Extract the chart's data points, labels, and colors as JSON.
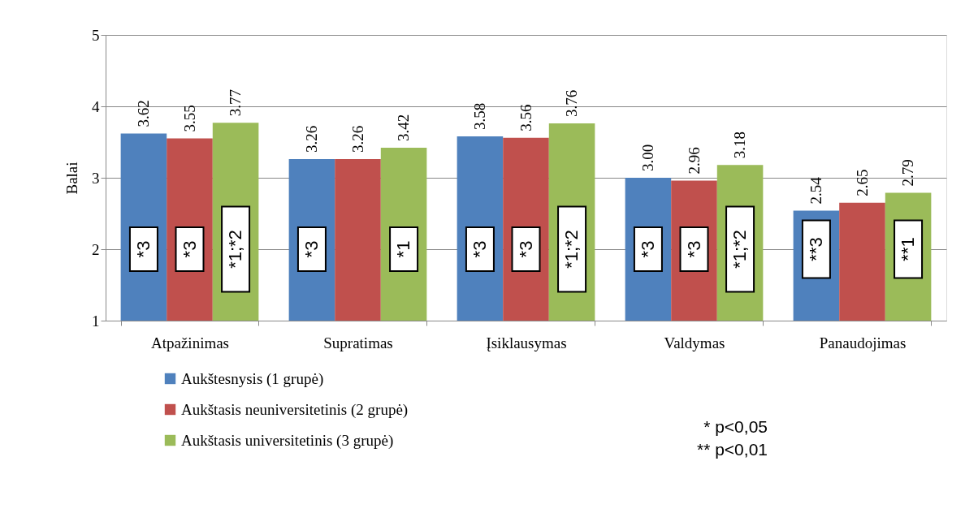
{
  "chart_data": {
    "type": "bar",
    "ylabel": "Balai",
    "categories": [
      "Atpažinimas",
      "Supratimas",
      "Įsiklausymas",
      "Valdymas",
      "Panaudojimas"
    ],
    "series": [
      {
        "name": "Aukštesnysis (1 grupė)",
        "color": "#4f81bd",
        "values": [
          3.62,
          3.26,
          3.58,
          3.0,
          2.54
        ],
        "value_labels": [
          "3.62",
          "3.26",
          "3.58",
          "3.00",
          "2.54"
        ]
      },
      {
        "name": "Aukštasis neuniversitetinis (2 grupė)",
        "color": "#c0504d",
        "values": [
          3.55,
          3.26,
          3.56,
          2.96,
          2.65
        ],
        "value_labels": [
          "3.55",
          "3.26",
          "3.56",
          "2.96",
          "2.65"
        ]
      },
      {
        "name": "Aukštasis universitetinis (3 grupė)",
        "color": "#9bbb59",
        "values": [
          3.77,
          3.42,
          3.76,
          3.18,
          2.79
        ],
        "value_labels": [
          "3.77",
          "3.42",
          "3.76",
          "3.18",
          "2.79"
        ]
      }
    ],
    "ylim": [
      1,
      5
    ],
    "yticks": [
      1,
      2,
      3,
      4,
      5
    ],
    "grid": "y",
    "legend": "bottom left",
    "annotations": [
      "*3",
      "*3",
      "*1;*2",
      "*3",
      null,
      "*1",
      "*3",
      "*3",
      "*1;*2",
      "*3",
      "*3",
      "*1;*2",
      "**3",
      null,
      "**1",
      "* p<0,05",
      "** p<0,01"
    ]
  }
}
